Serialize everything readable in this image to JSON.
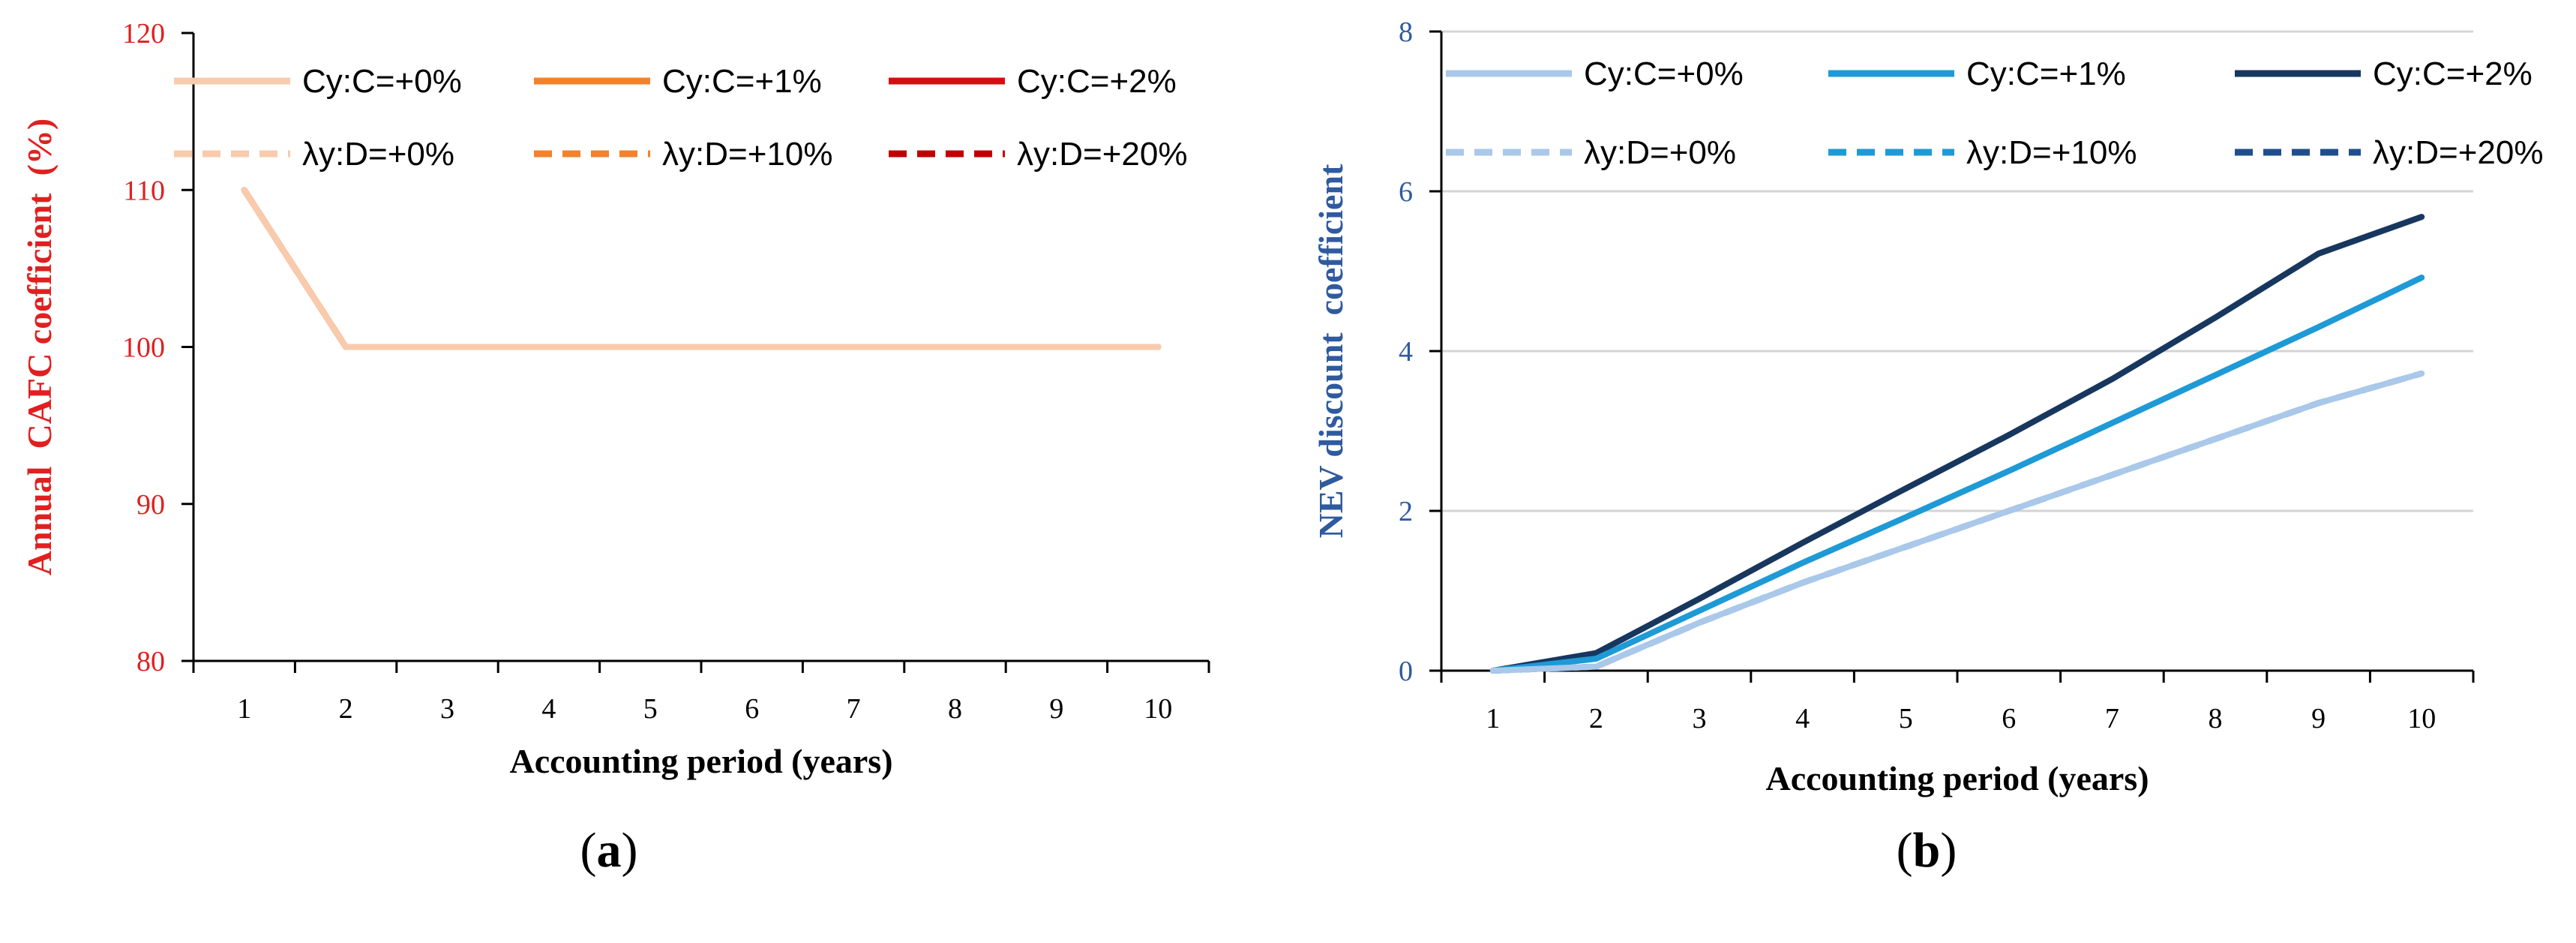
{
  "chart_data": [
    {
      "type": "line",
      "panel_label": "(a)",
      "panel_letter": "a",
      "title": "",
      "xlabel": "Accounting period (years)",
      "ylabel": "Annual  CAFC coefficient  (%)",
      "x": [
        1,
        2,
        3,
        4,
        5,
        6,
        7,
        8,
        9,
        10
      ],
      "xlim": [
        0.5,
        10.5
      ],
      "ylim": [
        80,
        120
      ],
      "yticks": [
        80,
        90,
        100,
        110,
        120
      ],
      "grid": false,
      "legend": "top",
      "series": [
        {
          "name": "Cy:C=+0%",
          "style": "solid",
          "color": "#f8cbad",
          "values": [
            110,
            100,
            100,
            100,
            100,
            100,
            100,
            100,
            100,
            100
          ]
        },
        {
          "name": "Cy:C=+1%",
          "style": "solid",
          "color": "#f4812b",
          "values": [
            110,
            100,
            100,
            100,
            100,
            100,
            100,
            100,
            100,
            100
          ]
        },
        {
          "name": "Cy:C=+2%",
          "style": "solid",
          "color": "#d40f0f",
          "values": [
            110,
            100,
            100,
            100,
            100,
            100,
            100,
            100,
            100,
            100
          ]
        },
        {
          "name": "λy:D=+0%",
          "style": "dashed",
          "color": "#f8cbad",
          "values": [
            110,
            100,
            100,
            100,
            100,
            100,
            100,
            100,
            100,
            100
          ]
        },
        {
          "name": "λy:D=+10%",
          "style": "dashed",
          "color": "#f4812b",
          "values": [
            110,
            100,
            100,
            100,
            100,
            100,
            100,
            100,
            100,
            100
          ]
        },
        {
          "name": "λy:D=+20%",
          "style": "dashed",
          "color": "#c00000",
          "values": [
            110,
            100,
            100,
            100,
            100,
            100,
            100,
            100,
            100,
            100
          ]
        }
      ],
      "axis_text_color": "#e02020",
      "label_color": "#e02020"
    },
    {
      "type": "line",
      "panel_label": "(b)",
      "panel_letter": "b",
      "title": "",
      "xlabel": "Accounting period (years)",
      "ylabel": "NEV discount  coefficient",
      "x": [
        1,
        2,
        3,
        4,
        5,
        6,
        7,
        8,
        9,
        10
      ],
      "xlim": [
        0.5,
        10.5
      ],
      "ylim": [
        0,
        8
      ],
      "yticks": [
        0,
        2,
        4,
        6,
        8
      ],
      "grid": true,
      "legend": "top",
      "series": [
        {
          "name": "Cy:C=+0%",
          "style": "solid",
          "color": "#a9c8ea",
          "values": [
            0,
            0.05,
            0.6,
            1.1,
            1.55,
            2.0,
            2.45,
            2.9,
            3.35,
            3.72
          ]
        },
        {
          "name": "Cy:C=+1%",
          "style": "solid",
          "color": "#1e9ad6",
          "values": [
            0,
            0.15,
            0.75,
            1.35,
            1.92,
            2.5,
            3.1,
            3.7,
            4.3,
            4.92
          ]
        },
        {
          "name": "Cy:C=+2%",
          "style": "solid",
          "color": "#17375e",
          "values": [
            0,
            0.22,
            0.9,
            1.6,
            2.28,
            2.95,
            3.65,
            4.42,
            5.22,
            5.68
          ]
        },
        {
          "name": "λy:D=+0%",
          "style": "dashed",
          "color": "#a9c8ea",
          "values": [
            0,
            0.05,
            0.6,
            1.1,
            1.55,
            2.0,
            2.45,
            2.9,
            3.35,
            3.72
          ]
        },
        {
          "name": "λy:D=+10%",
          "style": "dashed",
          "color": "#1e9ad6",
          "values": [
            0,
            0.05,
            0.6,
            1.1,
            1.55,
            2.0,
            2.45,
            2.9,
            3.35,
            3.72
          ]
        },
        {
          "name": "λy:D=+20%",
          "style": "dashed",
          "color": "#1f4e8c",
          "values": [
            0,
            0.05,
            0.6,
            1.1,
            1.55,
            2.0,
            2.45,
            2.9,
            3.35,
            3.72
          ]
        }
      ],
      "axis_text_color": "#2f5a9e",
      "label_color": "#2f5a9e"
    }
  ]
}
